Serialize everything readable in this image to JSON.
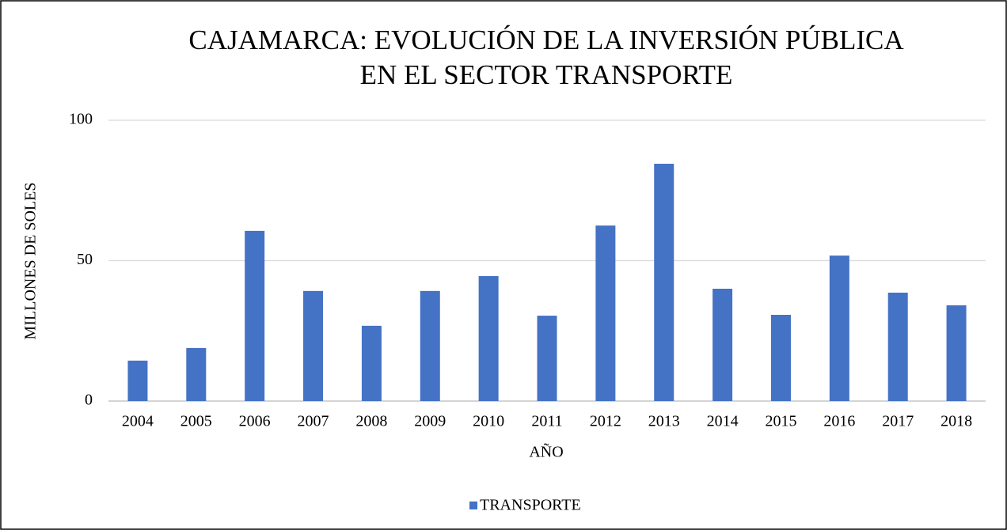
{
  "chart_data": {
    "type": "bar",
    "title": [
      "CAJAMARCA: EVOLUCIÓN DE LA INVERSIÓN PÚBLICA",
      "EN EL SECTOR TRANSPORTE"
    ],
    "xlabel": "AÑO",
    "ylabel": "MILLONES DE SOLES",
    "categories": [
      "2004",
      "2005",
      "2006",
      "2007",
      "2008",
      "2009",
      "2010",
      "2011",
      "2012",
      "2013",
      "2014",
      "2015",
      "2016",
      "2017",
      "2018"
    ],
    "series": [
      {
        "name": "TRANSPORTE",
        "color": "#4472c4",
        "values": [
          14.4,
          18.9,
          60.6,
          39.2,
          26.8,
          39.2,
          44.5,
          30.4,
          62.5,
          84.5,
          40,
          30.7,
          51.8,
          38.6,
          34.1
        ]
      }
    ],
    "ylim": [
      0,
      100
    ],
    "yticks": [
      0,
      50,
      100
    ],
    "grid": true,
    "legend": "bottom"
  }
}
